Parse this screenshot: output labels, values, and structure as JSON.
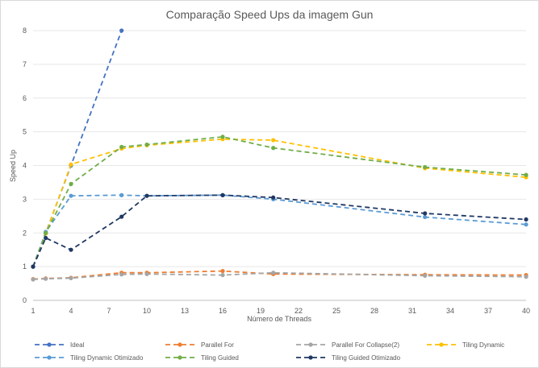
{
  "chart_data": {
    "type": "line",
    "title": "Comparação Speed Ups da imagem Gun",
    "xlabel": "Número de Threads",
    "ylabel": "Speed Up",
    "xlim": [
      1,
      40
    ],
    "ylim": [
      0,
      8
    ],
    "x_ticks": [
      1,
      4,
      7,
      10,
      13,
      16,
      19,
      22,
      25,
      28,
      31,
      34,
      37,
      40
    ],
    "y_ticks": [
      0,
      1,
      2,
      3,
      4,
      5,
      6,
      7,
      8
    ],
    "grid": "horizontal",
    "legend": "bottom",
    "series": [
      {
        "name": "Ideal",
        "color": "#4472c4",
        "points": [
          [
            1,
            1
          ],
          [
            2,
            2
          ],
          [
            4,
            4
          ],
          [
            8,
            8
          ]
        ]
      },
      {
        "name": "Parallel For",
        "color": "#ed7d31",
        "points": [
          [
            1,
            0.63
          ],
          [
            2,
            0.65
          ],
          [
            4,
            0.67
          ],
          [
            8,
            0.82
          ],
          [
            10,
            0.82
          ],
          [
            16,
            0.87
          ],
          [
            20,
            0.78
          ],
          [
            32,
            0.76
          ],
          [
            40,
            0.75
          ]
        ]
      },
      {
        "name": "Parallel For Collapse(2)",
        "color": "#a5a5a5",
        "points": [
          [
            1,
            0.62
          ],
          [
            2,
            0.64
          ],
          [
            4,
            0.66
          ],
          [
            8,
            0.77
          ],
          [
            10,
            0.78
          ],
          [
            16,
            0.75
          ],
          [
            20,
            0.82
          ],
          [
            32,
            0.73
          ],
          [
            40,
            0.7
          ]
        ]
      },
      {
        "name": "Tiling Dynamic",
        "color": "#ffc000",
        "points": [
          [
            1,
            1
          ],
          [
            2,
            1.98
          ],
          [
            4,
            4.03
          ],
          [
            8,
            4.5
          ],
          [
            10,
            4.6
          ],
          [
            16,
            4.78
          ],
          [
            20,
            4.75
          ],
          [
            32,
            3.92
          ],
          [
            40,
            3.65
          ]
        ]
      },
      {
        "name": "Tiling Dynamic Otimizado",
        "color": "#5b9bd5",
        "points": [
          [
            1,
            1
          ],
          [
            2,
            2.03
          ],
          [
            4,
            3.1
          ],
          [
            8,
            3.12
          ],
          [
            10,
            3.1
          ],
          [
            16,
            3.12
          ],
          [
            20,
            3.0
          ],
          [
            32,
            2.47
          ],
          [
            40,
            2.25
          ]
        ]
      },
      {
        "name": "Tiling Guided",
        "color": "#70ad47",
        "points": [
          [
            1,
            1
          ],
          [
            2,
            2.0
          ],
          [
            4,
            3.45
          ],
          [
            8,
            4.55
          ],
          [
            10,
            4.62
          ],
          [
            16,
            4.85
          ],
          [
            20,
            4.52
          ],
          [
            32,
            3.95
          ],
          [
            40,
            3.72
          ]
        ]
      },
      {
        "name": "Tiling Guided Otimizado",
        "color": "#203864",
        "points": [
          [
            1,
            1
          ],
          [
            2,
            1.85
          ],
          [
            4,
            1.5
          ],
          [
            8,
            2.48
          ],
          [
            10,
            3.1
          ],
          [
            16,
            3.12
          ],
          [
            20,
            3.05
          ],
          [
            32,
            2.58
          ],
          [
            40,
            2.4
          ]
        ]
      }
    ]
  }
}
